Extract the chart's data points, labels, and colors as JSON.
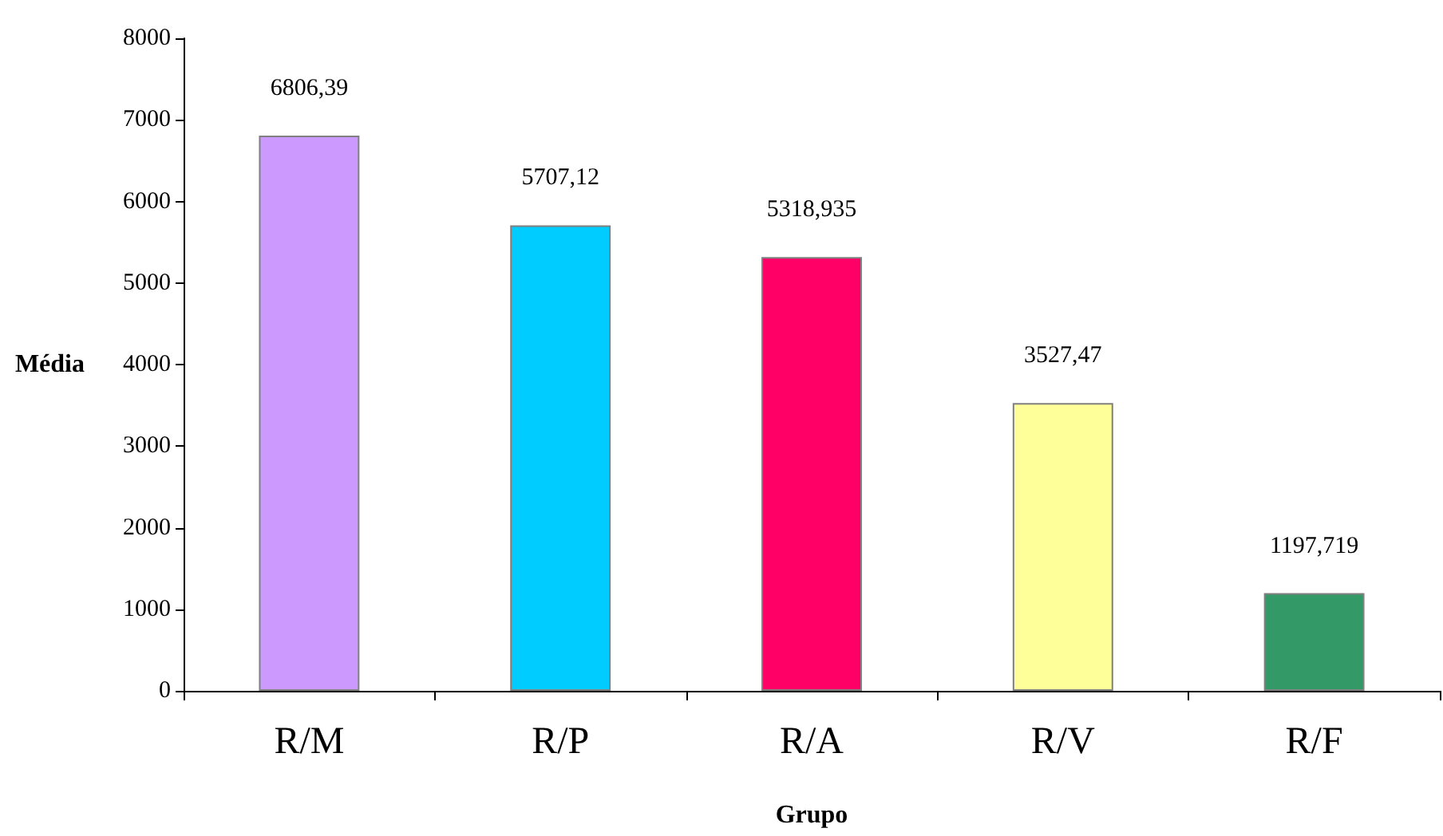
{
  "chart_data": {
    "type": "bar",
    "xlabel": "Grupo",
    "ylabel": "Média",
    "categories": [
      "R/M",
      "R/P",
      "R/A",
      "R/V",
      "R/F"
    ],
    "values": [
      6806.39,
      5707.12,
      5318.935,
      3527.47,
      1197.719
    ],
    "value_labels": [
      "6806,39",
      "5707,12",
      "5318,935",
      "3527,47",
      "1197,719"
    ],
    "colors": [
      "#cc99ff",
      "#00ccff",
      "#ff0066",
      "#ffff99",
      "#339966"
    ],
    "ylim": [
      0,
      8000
    ],
    "yticks": [
      0,
      1000,
      2000,
      3000,
      4000,
      5000,
      6000,
      7000,
      8000
    ],
    "grid": false
  }
}
